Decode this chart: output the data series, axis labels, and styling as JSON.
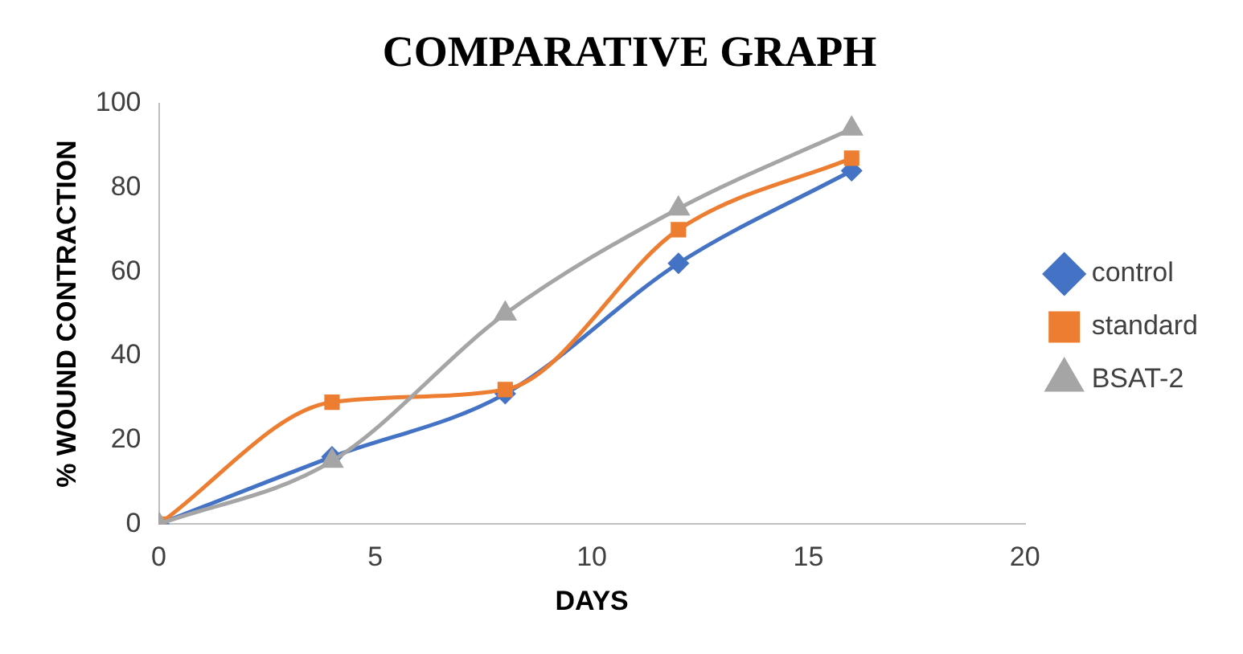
{
  "chart_data": {
    "type": "line",
    "title": "COMPARATIVE GRAPH",
    "xlabel": "DAYS",
    "ylabel": "% WOUND CONTRACTION",
    "x": [
      0,
      4,
      8,
      12,
      16
    ],
    "series": [
      {
        "name": "control",
        "color": "#4472c4",
        "marker": "diamond",
        "values": [
          0,
          16,
          31,
          62,
          84
        ]
      },
      {
        "name": "standard",
        "color": "#ed7d31",
        "marker": "square",
        "values": [
          0,
          29,
          32,
          70,
          87
        ]
      },
      {
        "name": "BSAT-2",
        "color": "#a5a5a5",
        "marker": "triangle",
        "values": [
          0,
          15,
          50,
          75,
          94
        ]
      }
    ],
    "xlim": [
      0,
      20
    ],
    "xticks": [
      0,
      5,
      10,
      15,
      20
    ],
    "ylim": [
      0,
      100
    ],
    "yticks": [
      0,
      20,
      40,
      60,
      80,
      100
    ],
    "grid": false,
    "legend": "right",
    "line_style": "solid"
  }
}
